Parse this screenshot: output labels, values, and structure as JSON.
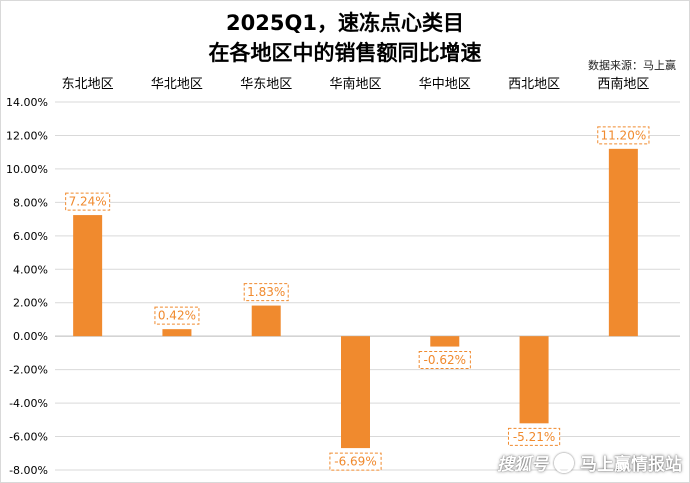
{
  "title_line1": "2025Q1，速冻点心类目",
  "title_line2": "在各地区中的销售额同比增速",
  "source": "数据来源：马上赢",
  "watermark": {
    "brand": "搜狐号",
    "name": "马上赢情报站",
    "icon": "account-icon"
  },
  "colors": {
    "bar": "#f08a2e",
    "label_border": "#f08a2e",
    "label_text": "#f08a2e",
    "grid": "#d9d9d9",
    "axis_text": "#000000"
  },
  "chart_data": {
    "type": "bar",
    "categories": [
      "东北地区",
      "华北地区",
      "华东地区",
      "华南地区",
      "华中地区",
      "西北地区",
      "西南地区"
    ],
    "values": [
      7.24,
      0.42,
      1.83,
      -6.69,
      -0.62,
      -5.21,
      11.2
    ],
    "value_labels": [
      "7.24%",
      "0.42%",
      "1.83%",
      "-6.69%",
      "-0.62%",
      "-5.21%",
      "11.20%"
    ],
    "yticks": [
      "14.00%",
      "12.00%",
      "10.00%",
      "8.00%",
      "6.00%",
      "4.00%",
      "2.00%",
      "0.00%",
      "-2.00%",
      "-4.00%",
      "-6.00%",
      "-8.00%"
    ],
    "ylim": [
      -8,
      14
    ],
    "tick_step": 2,
    "category_axis_position": "top",
    "grid": true,
    "legend": "none",
    "title": "2025Q1，速冻点心类目在各地区中的销售额同比增速",
    "xlabel": "",
    "ylabel": ""
  }
}
